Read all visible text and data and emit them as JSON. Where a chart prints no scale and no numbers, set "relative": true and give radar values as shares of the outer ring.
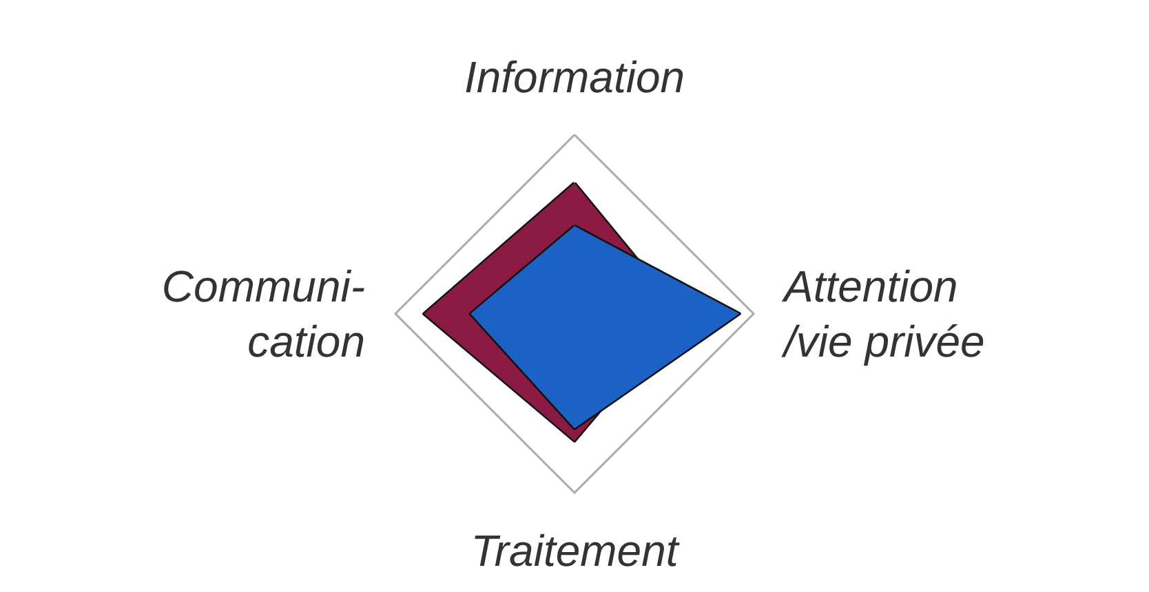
{
  "chart_data": {
    "type": "radar",
    "relative": true,
    "categories": [
      "Information",
      "Attention\n/vie privée",
      "Traitement",
      "Communi-\ncation"
    ],
    "series": [
      {
        "color": "#8b1a44",
        "values": [
          0.73,
          0.6,
          0.71,
          0.84
        ]
      },
      {
        "color": "#1b62c4",
        "values": [
          0.49,
          0.92,
          0.64,
          0.58
        ]
      }
    ]
  }
}
